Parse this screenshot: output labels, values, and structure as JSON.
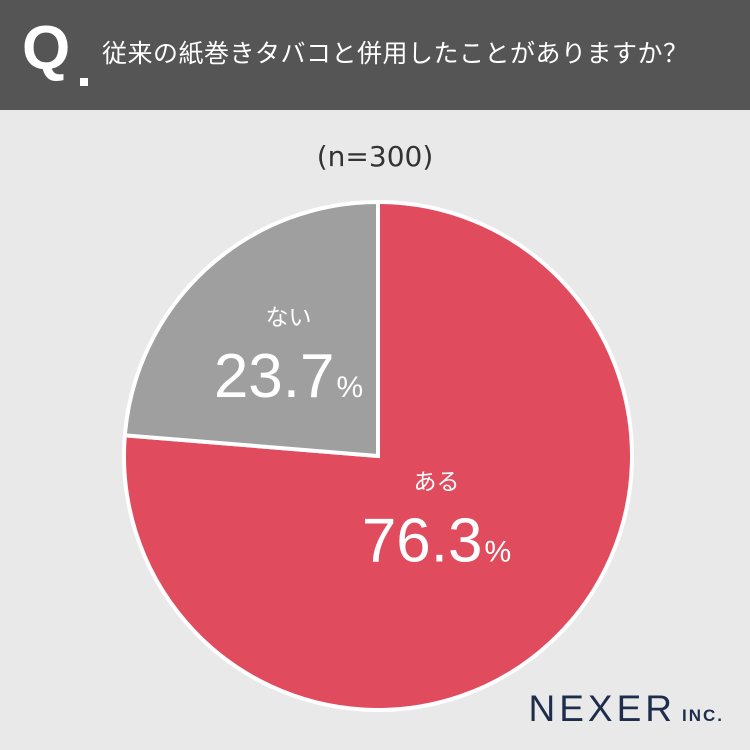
{
  "question": {
    "mark": "Q",
    "text": "従来の紙巻きタバコと併用したことがありますか？"
  },
  "sample_size": "(n=300)",
  "chart_data": {
    "type": "pie",
    "categories": [
      "ある",
      "ない"
    ],
    "values": [
      76.3,
      23.7
    ],
    "unit": "%",
    "colors": [
      "#e04b5e",
      "#9f9f9f"
    ],
    "start_angle": "12 o'clock",
    "direction": "clockwise"
  },
  "logo": {
    "name": "NEXER",
    "suffix": "INC."
  }
}
